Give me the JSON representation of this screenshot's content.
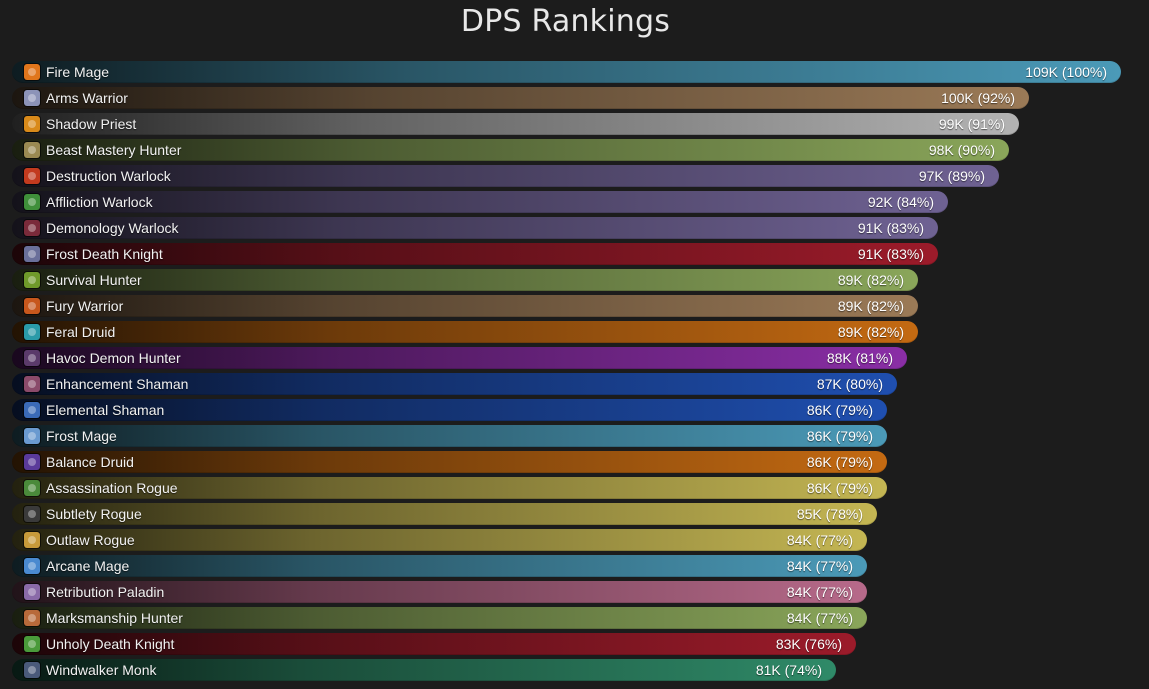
{
  "chart_data": {
    "type": "bar",
    "orientation": "horizontal",
    "title": "DPS Rankings",
    "xlim": [
      0,
      109
    ],
    "grid": false,
    "legend": "none",
    "categories": [
      "Fire Mage",
      "Arms Warrior",
      "Shadow Priest",
      "Beast Mastery Hunter",
      "Destruction Warlock",
      "Affliction Warlock",
      "Demonology Warlock",
      "Frost Death Knight",
      "Survival Hunter",
      "Fury Warrior",
      "Feral Druid",
      "Havoc Demon Hunter",
      "Enhancement Shaman",
      "Elemental Shaman",
      "Frost Mage",
      "Balance Druid",
      "Assassination Rogue",
      "Subtlety Rogue",
      "Outlaw Rogue",
      "Arcane Mage",
      "Retribution Paladin",
      "Marksmanship Hunter",
      "Unholy Death Knight",
      "Windwalker Monk"
    ],
    "values": [
      109,
      100,
      99,
      98,
      97,
      92,
      91,
      91,
      89,
      89,
      89,
      88,
      87,
      86,
      86,
      86,
      86,
      85,
      84,
      84,
      84,
      84,
      83,
      81
    ],
    "value_labels": [
      "109K (100%)",
      "100K (92%)",
      "99K (91%)",
      "98K (90%)",
      "97K (89%)",
      "92K (84%)",
      "91K (83%)",
      "91K (83%)",
      "89K (82%)",
      "89K (82%)",
      "89K (82%)",
      "88K (81%)",
      "87K (80%)",
      "86K (79%)",
      "86K (79%)",
      "86K (79%)",
      "86K (79%)",
      "85K (78%)",
      "84K (77%)",
      "84K (77%)",
      "84K (77%)",
      "84K (77%)",
      "83K (76%)",
      "81K (74%)"
    ],
    "colors": [
      "#4b9ab8",
      "#9b7a57",
      "#b3b3b3",
      "#8aa65a",
      "#6f6293",
      "#6f6293",
      "#6f6293",
      "#9c1b2a",
      "#8aa65a",
      "#9b7a57",
      "#c46a12",
      "#8a2ea6",
      "#1f4fb0",
      "#1f4fb0",
      "#4b9ab8",
      "#c46a12",
      "#c4b653",
      "#c4b653",
      "#c4b653",
      "#4b9ab8",
      "#b76a8a",
      "#8aa65a",
      "#9c1b2a",
      "#2f8a68"
    ],
    "icons": [
      "fire-mage-icon",
      "arms-warrior-icon",
      "shadow-priest-icon",
      "beast-mastery-hunter-icon",
      "destruction-warlock-icon",
      "affliction-warlock-icon",
      "demonology-warlock-icon",
      "frost-death-knight-icon",
      "survival-hunter-icon",
      "fury-warrior-icon",
      "feral-druid-icon",
      "havoc-demon-hunter-icon",
      "enhancement-shaman-icon",
      "elemental-shaman-icon",
      "frost-mage-icon",
      "balance-druid-icon",
      "assassination-rogue-icon",
      "subtlety-rogue-icon",
      "outlaw-rogue-icon",
      "arcane-mage-icon",
      "retribution-paladin-icon",
      "marksmanship-hunter-icon",
      "unholy-death-knight-icon",
      "windwalker-monk-icon"
    ],
    "icon_colors": [
      "#e0761c",
      "#8c93b8",
      "#d98a1a",
      "#9a8a52",
      "#c23a1e",
      "#3f8f3a",
      "#7a2a3a",
      "#6a6f9a",
      "#6f9a2a",
      "#c7571c",
      "#2a9aa8",
      "#5a3a6a",
      "#8a4a6a",
      "#3a6ab8",
      "#6a9ad0",
      "#5a3a9a",
      "#4a8a3a",
      "#3a3a3a",
      "#c79a3a",
      "#4a8ad0",
      "#8a6aa8",
      "#b86a3a",
      "#4a9a3a",
      "#4a5a7a"
    ]
  }
}
